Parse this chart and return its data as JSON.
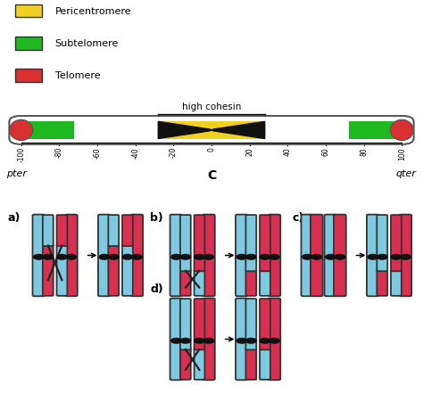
{
  "legend_items": [
    {
      "label": "Pericentromere",
      "color": "#f0d020"
    },
    {
      "label": "Subtelomere",
      "color": "#20b820"
    },
    {
      "label": "Telomere",
      "color": "#d83030"
    }
  ],
  "tick_positions": [
    -100,
    -80,
    -60,
    -40,
    -20,
    0,
    20,
    40,
    60,
    80,
    100
  ],
  "tick_labels": [
    "-100",
    "-80",
    "-60",
    "-40",
    "-20",
    "0",
    "20",
    "40",
    "60",
    "80",
    "100"
  ],
  "cyan_color": "#7ec8e0",
  "red_color": "#d83050",
  "dot_color": "#111111"
}
